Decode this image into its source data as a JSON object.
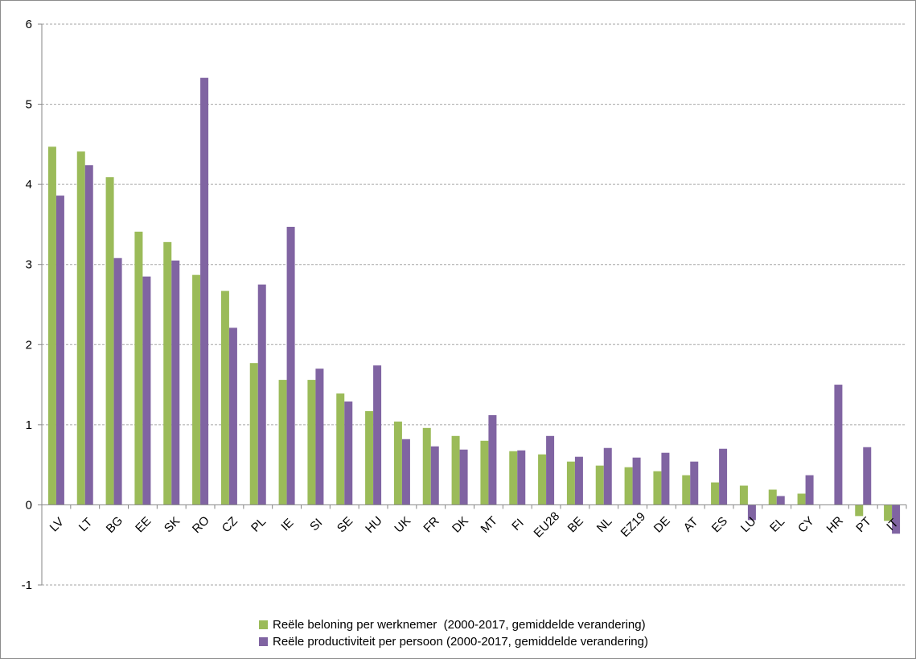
{
  "chart_data": {
    "type": "bar",
    "categories": [
      "LV",
      "LT",
      "BG",
      "EE",
      "SK",
      "RO",
      "CZ",
      "PL",
      "IE",
      "SI",
      "SE",
      "HU",
      "UK",
      "FR",
      "DK",
      "MT",
      "FI",
      "EU28",
      "BE",
      "NL",
      "EZ19",
      "DE",
      "AT",
      "ES",
      "LU",
      "EL",
      "CY",
      "HR",
      "PT",
      "IT"
    ],
    "series": [
      {
        "name": "Reële beloning per werknemer  (2000-2017, gemiddelde verandering)",
        "color": "#9bbb59",
        "values": [
          4.47,
          4.41,
          4.09,
          3.41,
          3.28,
          2.87,
          2.67,
          1.77,
          1.56,
          1.56,
          1.39,
          1.17,
          1.04,
          0.96,
          0.86,
          0.8,
          0.67,
          0.63,
          0.54,
          0.49,
          0.47,
          0.42,
          0.37,
          0.28,
          0.24,
          0.19,
          0.14,
          null,
          -0.14,
          -0.2
        ]
      },
      {
        "name": "Reële productiviteit per persoon (2000-2017, gemiddelde verandering)",
        "color": "#8064a2",
        "values": [
          3.86,
          4.24,
          3.08,
          2.85,
          3.05,
          5.33,
          2.21,
          2.75,
          3.47,
          1.7,
          1.29,
          1.74,
          0.82,
          0.73,
          0.69,
          1.12,
          0.68,
          0.86,
          0.6,
          0.71,
          0.59,
          0.65,
          0.54,
          0.7,
          -0.19,
          0.11,
          0.37,
          1.5,
          0.72,
          -0.36
        ]
      }
    ],
    "ylim": [
      -1,
      6
    ],
    "yticks": [
      "-1",
      "0",
      "1",
      "2",
      "3",
      "4",
      "5",
      "6"
    ],
    "grid": true,
    "legend_position": "bottom",
    "xlabel": "",
    "ylabel": "",
    "title": ""
  }
}
